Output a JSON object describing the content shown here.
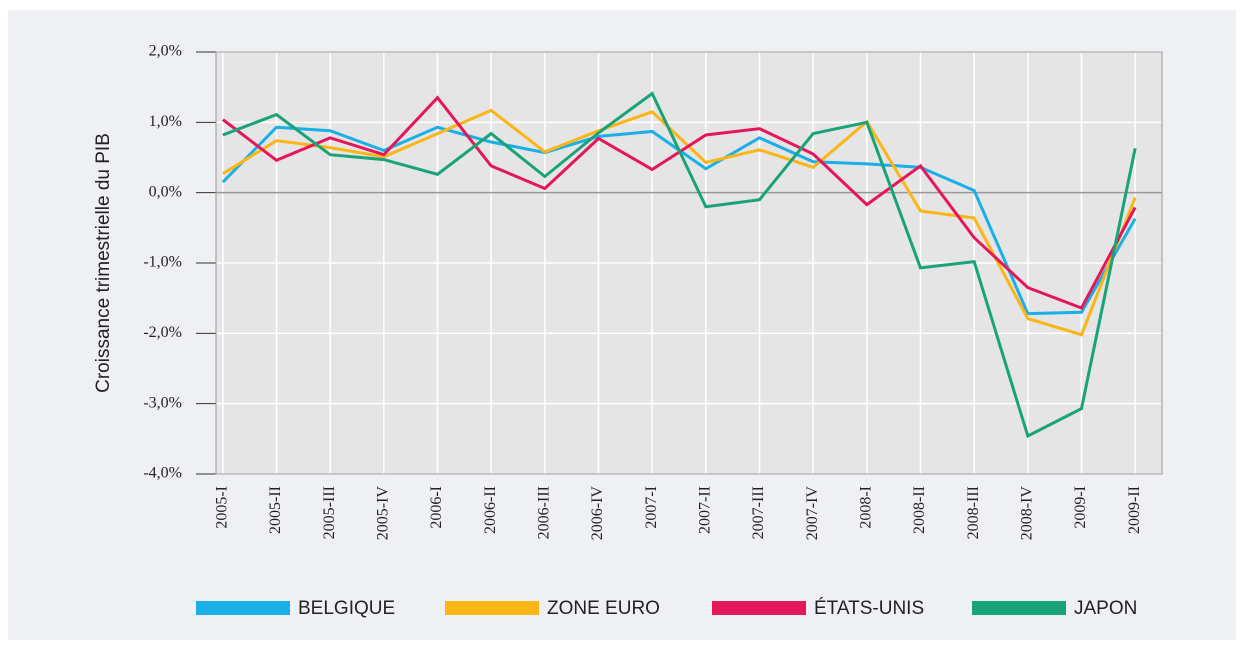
{
  "chart_data": {
    "type": "line",
    "y_label": "Croissance trimestrielle du PIB",
    "categories": [
      "2005-I",
      "2005-II",
      "2005-III",
      "2005-IV",
      "2006-I",
      "2006-II",
      "2006-III",
      "2006-IV",
      "2007-I",
      "2007-II",
      "2007-III",
      "2007-IV",
      "2008-I",
      "2008-II",
      "2008-III",
      "2008-IV",
      "2009-I",
      "2009-II"
    ],
    "series": [
      {
        "name": "BELGIQUE",
        "color": "#1aafe6",
        "values": [
          0.15,
          0.93,
          0.88,
          0.6,
          0.93,
          0.72,
          0.57,
          0.8,
          0.87,
          0.34,
          0.78,
          0.44,
          0.41,
          0.36,
          0.03,
          -1.72,
          -1.7,
          -0.37
        ]
      },
      {
        "name": "ZONE EURO",
        "color": "#fbb616",
        "values": [
          0.27,
          0.74,
          0.64,
          0.51,
          0.84,
          1.17,
          0.58,
          0.88,
          1.15,
          0.43,
          0.61,
          0.36,
          1.01,
          -0.26,
          -0.36,
          -1.79,
          -2.02,
          -0.07
        ]
      },
      {
        "name": "ÉTATS-UNIS",
        "color": "#e5175b",
        "values": [
          1.04,
          0.46,
          0.78,
          0.54,
          1.35,
          0.38,
          0.06,
          0.77,
          0.33,
          0.82,
          0.91,
          0.55,
          -0.17,
          0.38,
          -0.64,
          -1.35,
          -1.64,
          -0.21
        ]
      },
      {
        "name": "JAPON",
        "color": "#1aa27a",
        "values": [
          0.82,
          1.11,
          0.54,
          0.47,
          0.26,
          0.84,
          0.23,
          0.85,
          1.41,
          -0.2,
          -0.1,
          0.84,
          1.0,
          -1.07,
          -0.98,
          -3.46,
          -3.07,
          0.63
        ]
      }
    ],
    "ylim": [
      -4,
      2
    ],
    "yticks": [
      {
        "value": -4,
        "label": "-4,0%"
      },
      {
        "value": -3,
        "label": "-3,0%"
      },
      {
        "value": -2,
        "label": "-2,0%"
      },
      {
        "value": -1,
        "label": "-1,0%"
      },
      {
        "value": 0,
        "label": "0,0%"
      },
      {
        "value": 1,
        "label": "1,0%"
      },
      {
        "value": 2,
        "label": "2,0%"
      }
    ],
    "grid": true,
    "legend": "bottom"
  }
}
